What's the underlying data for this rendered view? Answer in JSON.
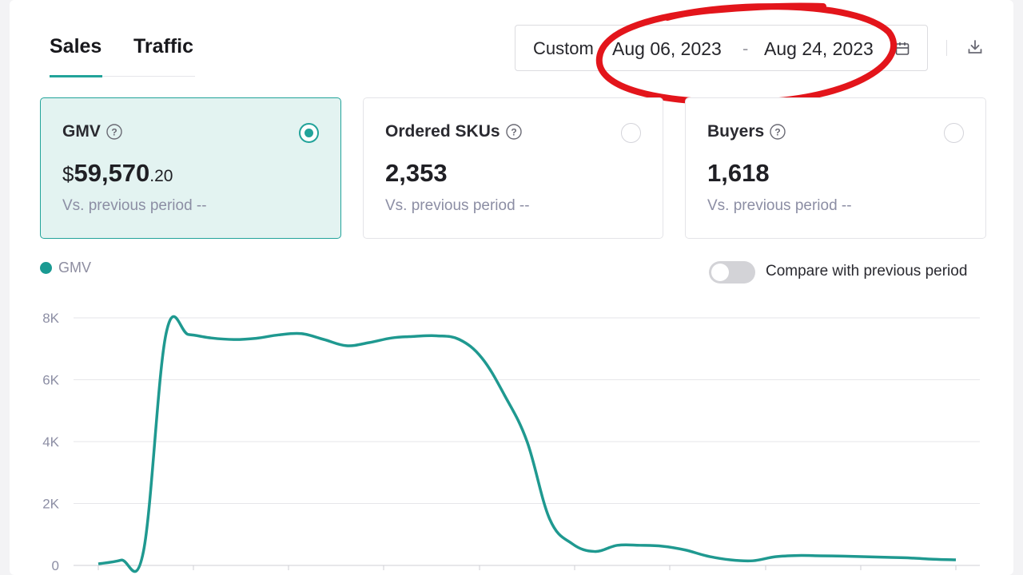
{
  "tabs": [
    {
      "label": "Sales",
      "active": true
    },
    {
      "label": "Traffic",
      "active": false
    }
  ],
  "date_range": {
    "mode": "Custom",
    "start": "Aug 06, 2023",
    "separator": "-",
    "end": "Aug 24, 2023"
  },
  "metrics": [
    {
      "title": "GMV",
      "currency": "$",
      "value": "59,570",
      "cents": ".20",
      "compare": "Vs. previous period  --",
      "selected": true
    },
    {
      "title": "Ordered SKUs",
      "value": "2,353",
      "compare": "Vs. previous period  --",
      "selected": false
    },
    {
      "title": "Buyers",
      "value": "1,618",
      "compare": "Vs. previous period  --",
      "selected": false
    }
  ],
  "legend": {
    "label": "GMV",
    "color": "#1a9a92"
  },
  "toggle": {
    "label": "Compare with previous period",
    "on": false
  },
  "colors": {
    "accent": "#22a39a",
    "line": "#1f9990",
    "selected_card_bg": "#e3f3f1"
  },
  "icons": [
    "help-icon",
    "calendar-icon",
    "download-icon",
    "radio-icon"
  ],
  "chart_data": {
    "type": "line",
    "series": [
      {
        "name": "GMV",
        "values": [
          50,
          170,
          450,
          7480,
          7460,
          7350,
          7300,
          7340,
          7450,
          7490,
          7300,
          7100,
          7200,
          7350,
          7400,
          7420,
          7300,
          6700,
          5500,
          4000,
          1500,
          700,
          450,
          650,
          650,
          620,
          500,
          300,
          180,
          150,
          280,
          320,
          310,
          300,
          280,
          260,
          240,
          200,
          180
        ]
      }
    ],
    "y_ticks": [
      "8K",
      "6K",
      "4K",
      "2K",
      "0"
    ],
    "ylim": [
      0,
      8000
    ],
    "grid": true
  }
}
